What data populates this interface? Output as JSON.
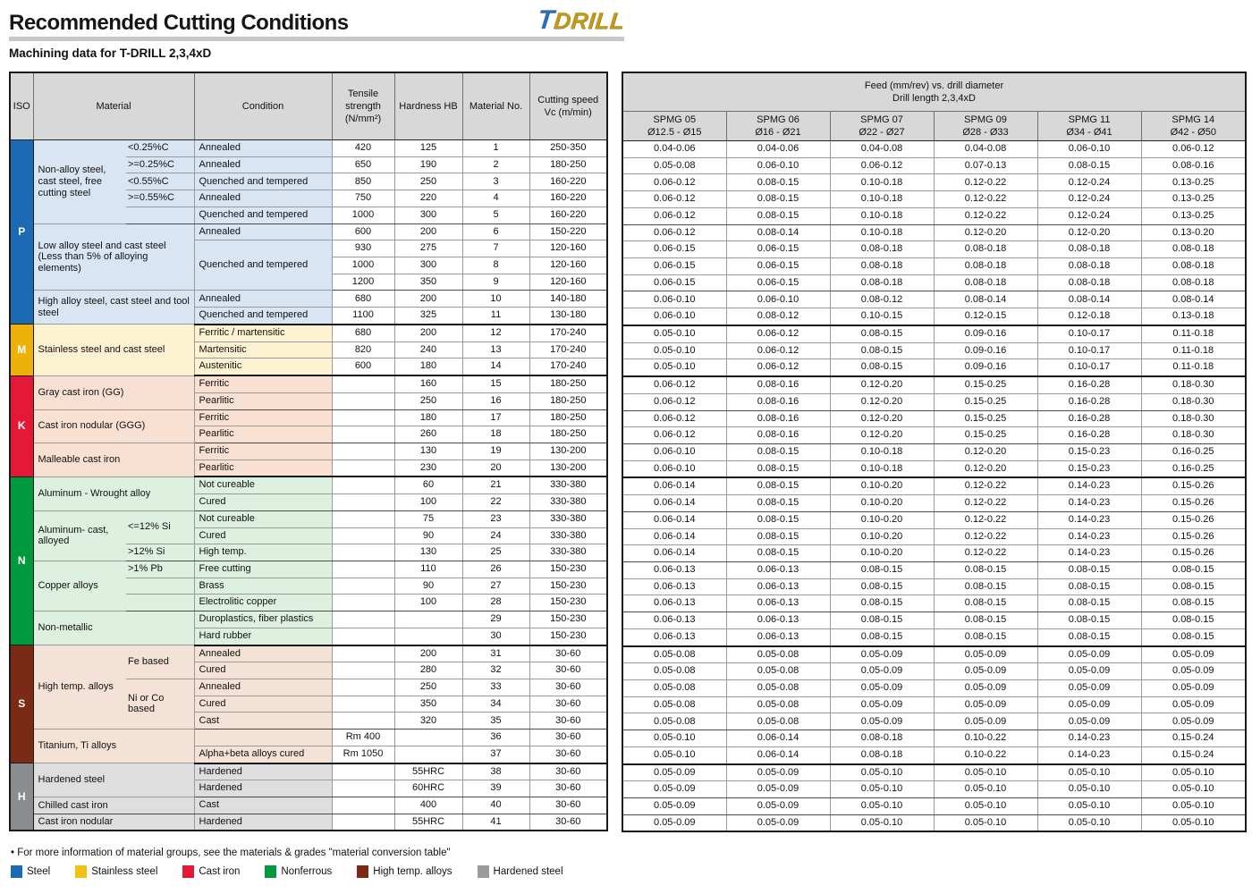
{
  "header": {
    "title": "Recommended Cutting Conditions",
    "subtitle": "Machining data for T-DRILL 2,3,4xD",
    "logo_t": "T",
    "logo_drill": "DRILL"
  },
  "iso_colors": {
    "P": {
      "badge": "#1b6ab3",
      "bg": "#d9e5f3"
    },
    "M": {
      "badge": "#eeb00a",
      "bg": "#fdf3d2"
    },
    "K": {
      "badge": "#e41937",
      "bg": "#f8e0d2"
    },
    "N": {
      "badge": "#00993f",
      "bg": "#def0e0"
    },
    "S": {
      "badge": "#7a2a15",
      "bg": "#f3e2d5"
    },
    "H": {
      "badge": "#8a8d8f",
      "bg": "#dedede"
    }
  },
  "left_table": {
    "headers": [
      "ISO",
      "Material",
      "Condition",
      "Tensile strength (N/mm²)",
      "Hardness HB",
      "Material No.",
      "Cutting speed Vc (m/min)"
    ],
    "rows": [
      {
        "iso": "P",
        "isoSpan": 11,
        "mat": "Non-alloy steel, cast steel, free cutting steel",
        "matSpan": 5,
        "qual": "<0.25%C",
        "cond": "Annealed",
        "ten": "420",
        "hb": "125",
        "no": "1",
        "vc": "250-350"
      },
      {
        "qual": ">=0.25%C",
        "cond": "Annealed",
        "ten": "650",
        "hb": "190",
        "no": "2",
        "vc": "180-250"
      },
      {
        "qual": "<0.55%C",
        "cond": "Quenched and tempered",
        "ten": "850",
        "hb": "250",
        "no": "3",
        "vc": "160-220"
      },
      {
        "qual": ">=0.55%C",
        "cond": "Annealed",
        "ten": "750",
        "hb": "220",
        "no": "4",
        "vc": "160-220"
      },
      {
        "qual": "",
        "cond": "Quenched and tempered",
        "ten": "1000",
        "hb": "300",
        "no": "5",
        "vc": "160-220"
      },
      {
        "mat": "Low alloy steel and cast steel (Less than 5% of alloying elements)",
        "matSpan": 4,
        "matCols": 2,
        "cond": "Annealed",
        "ten": "600",
        "hb": "200",
        "no": "6",
        "vc": "150-220"
      },
      {
        "cond": "Quenched and tempered",
        "condSpan": 3,
        "ten": "930",
        "hb": "275",
        "no": "7",
        "vc": "120-160"
      },
      {
        "ten": "1000",
        "hb": "300",
        "no": "8",
        "vc": "120-160"
      },
      {
        "ten": "1200",
        "hb": "350",
        "no": "9",
        "vc": "120-160"
      },
      {
        "mat": "High alloy steel, cast steel and tool steel",
        "matSpan": 2,
        "matCols": 2,
        "cond": "Annealed",
        "ten": "680",
        "hb": "200",
        "no": "10",
        "vc": "140-180"
      },
      {
        "cond": "Quenched and tempered",
        "ten": "1100",
        "hb": "325",
        "no": "11",
        "vc": "130-180"
      },
      {
        "iso": "M",
        "isoSpan": 3,
        "mat": "Stainless steel and cast steel",
        "matSpan": 3,
        "matCols": 2,
        "cond": "Ferritic / martensitic",
        "ten": "680",
        "hb": "200",
        "no": "12",
        "vc": "170-240"
      },
      {
        "cond": "Martensitic",
        "ten": "820",
        "hb": "240",
        "no": "13",
        "vc": "170-240"
      },
      {
        "cond": "Austenitic",
        "ten": "600",
        "hb": "180",
        "no": "14",
        "vc": "170-240"
      },
      {
        "iso": "K",
        "isoSpan": 6,
        "mat": "Gray cast iron (GG)",
        "matSpan": 2,
        "matCols": 2,
        "cond": "Ferritic",
        "ten": "",
        "hb": "160",
        "no": "15",
        "vc": "180-250"
      },
      {
        "cond": "Pearlitic",
        "ten": "",
        "hb": "250",
        "no": "16",
        "vc": "180-250"
      },
      {
        "mat": "Cast iron nodular (GGG)",
        "matSpan": 2,
        "matCols": 2,
        "cond": "Ferritic",
        "ten": "",
        "hb": "180",
        "no": "17",
        "vc": "180-250"
      },
      {
        "cond": "Pearlitic",
        "ten": "",
        "hb": "260",
        "no": "18",
        "vc": "180-250"
      },
      {
        "mat": "Malleable cast iron",
        "matSpan": 2,
        "matCols": 2,
        "cond": "Ferritic",
        "ten": "",
        "hb": "130",
        "no": "19",
        "vc": "130-200"
      },
      {
        "cond": "Pearlitic",
        "ten": "",
        "hb": "230",
        "no": "20",
        "vc": "130-200"
      },
      {
        "iso": "N",
        "isoSpan": 10,
        "mat": "Aluminum - Wrought alloy",
        "matSpan": 2,
        "matCols": 2,
        "cond": "Not cureable",
        "ten": "",
        "hb": "60",
        "no": "21",
        "vc": "330-380"
      },
      {
        "cond": "Cured",
        "ten": "",
        "hb": "100",
        "no": "22",
        "vc": "330-380"
      },
      {
        "mat": "Aluminum- cast, alloyed",
        "matSpan": 3,
        "qual": "<=12% Si",
        "qualSpan": 2,
        "cond": "Not cureable",
        "ten": "",
        "hb": "75",
        "no": "23",
        "vc": "330-380"
      },
      {
        "cond": "Cured",
        "ten": "",
        "hb": "90",
        "no": "24",
        "vc": "330-380"
      },
      {
        "qual": ">12% Si",
        "cond": "High temp.",
        "ten": "",
        "hb": "130",
        "no": "25",
        "vc": "330-380"
      },
      {
        "mat": "Copper alloys",
        "matSpan": 3,
        "qual": ">1% Pb",
        "cond": "Free cutting",
        "ten": "",
        "hb": "110",
        "no": "26",
        "vc": "150-230"
      },
      {
        "qual": "",
        "cond": "Brass",
        "ten": "",
        "hb": "90",
        "no": "27",
        "vc": "150-230"
      },
      {
        "qual": "",
        "cond": "Electrolitic copper",
        "ten": "",
        "hb": "100",
        "no": "28",
        "vc": "150-230"
      },
      {
        "mat": "Non-metallic",
        "matSpan": 2,
        "matCols": 2,
        "cond": "Duroplastics, fiber plastics",
        "ten": "",
        "hb": "",
        "no": "29",
        "vc": "150-230"
      },
      {
        "cond": "Hard rubber",
        "ten": "",
        "hb": "",
        "no": "30",
        "vc": "150-230"
      },
      {
        "iso": "S",
        "isoSpan": 7,
        "mat": "High temp. alloys",
        "matSpan": 5,
        "qual": "Fe based",
        "qualSpan": 2,
        "cond": "Annealed",
        "ten": "",
        "hb": "200",
        "no": "31",
        "vc": "30-60"
      },
      {
        "cond": "Cured",
        "ten": "",
        "hb": "280",
        "no": "32",
        "vc": "30-60"
      },
      {
        "qual": "Ni or Co based",
        "qualSpan": 3,
        "cond": "Annealed",
        "ten": "",
        "hb": "250",
        "no": "33",
        "vc": "30-60"
      },
      {
        "cond": "Cured",
        "ten": "",
        "hb": "350",
        "no": "34",
        "vc": "30-60"
      },
      {
        "cond": "Cast",
        "ten": "",
        "hb": "320",
        "no": "35",
        "vc": "30-60"
      },
      {
        "mat": "Titanium, Ti alloys",
        "matSpan": 2,
        "matCols": 2,
        "cond": "",
        "ten": "Rm 400",
        "hb": "",
        "no": "36",
        "vc": "30-60"
      },
      {
        "cond": "Alpha+beta alloys cured",
        "ten": "Rm 1050",
        "hb": "",
        "no": "37",
        "vc": "30-60"
      },
      {
        "iso": "H",
        "isoSpan": 4,
        "mat": "Hardened steel",
        "matSpan": 2,
        "matCols": 2,
        "cond": "Hardened",
        "ten": "",
        "hb": "55HRC",
        "no": "38",
        "vc": "30-60"
      },
      {
        "cond": "Hardened",
        "ten": "",
        "hb": "60HRC",
        "no": "39",
        "vc": "30-60"
      },
      {
        "mat": "Chilled cast iron",
        "matSpan": 1,
        "matCols": 2,
        "cond": "Cast",
        "ten": "",
        "hb": "400",
        "no": "40",
        "vc": "30-60"
      },
      {
        "mat": "Cast iron nodular",
        "matSpan": 1,
        "matCols": 2,
        "cond": "Hardened",
        "ten": "",
        "hb": "55HRC",
        "no": "41",
        "vc": "30-60"
      }
    ]
  },
  "right_table": {
    "group_header_line1": "Feed (mm/rev) vs. drill diameter",
    "group_header_line2": "Drill length 2,3,4xD",
    "columns": [
      {
        "name": "SPMG 05",
        "range": "Ø12.5 - Ø15"
      },
      {
        "name": "SPMG 06",
        "range": "Ø16 - Ø21"
      },
      {
        "name": "SPMG 07",
        "range": "Ø22 - Ø27"
      },
      {
        "name": "SPMG 09",
        "range": "Ø28 - Ø33"
      },
      {
        "name": "SPMG 11",
        "range": "Ø34 - Ø41"
      },
      {
        "name": "SPMG 14",
        "range": "Ø42 - Ø50"
      }
    ],
    "rows": [
      [
        "0.04-0.06",
        "0.04-0.06",
        "0.04-0.08",
        "0.04-0.08",
        "0.06-0.10",
        "0.06-0.12"
      ],
      [
        "0.05-0.08",
        "0.06-0.10",
        "0.06-0.12",
        "0.07-0.13",
        "0.08-0.15",
        "0.08-0.16"
      ],
      [
        "0.06-0.12",
        "0.08-0.15",
        "0.10-0.18",
        "0.12-0.22",
        "0.12-0.24",
        "0.13-0.25"
      ],
      [
        "0.06-0.12",
        "0.08-0.15",
        "0.10-0.18",
        "0.12-0.22",
        "0.12-0.24",
        "0.13-0.25"
      ],
      [
        "0.06-0.12",
        "0.08-0.15",
        "0.10-0.18",
        "0.12-0.22",
        "0.12-0.24",
        "0.13-0.25"
      ],
      [
        "0.06-0.12",
        "0.08-0.14",
        "0.10-0.18",
        "0.12-0.20",
        "0.12-0.20",
        "0.13-0.20"
      ],
      [
        "0.06-0.15",
        "0.06-0.15",
        "0.08-0.18",
        "0.08-0.18",
        "0.08-0.18",
        "0.08-0.18"
      ],
      [
        "0.06-0.15",
        "0.06-0.15",
        "0.08-0.18",
        "0.08-0.18",
        "0.08-0.18",
        "0.08-0.18"
      ],
      [
        "0.06-0.15",
        "0.06-0.15",
        "0.08-0.18",
        "0.08-0.18",
        "0.08-0.18",
        "0.08-0.18"
      ],
      [
        "0.06-0.10",
        "0.06-0.10",
        "0.08-0.12",
        "0.08-0.14",
        "0.08-0.14",
        "0.08-0.14"
      ],
      [
        "0.06-0.10",
        "0.08-0.12",
        "0.10-0.15",
        "0.12-0.15",
        "0.12-0.18",
        "0.13-0.18"
      ],
      [
        "0.05-0.10",
        "0.06-0.12",
        "0.08-0.15",
        "0.09-0.16",
        "0.10-0.17",
        "0.11-0.18"
      ],
      [
        "0.05-0.10",
        "0.06-0.12",
        "0.08-0.15",
        "0.09-0.16",
        "0.10-0.17",
        "0.11-0.18"
      ],
      [
        "0.05-0.10",
        "0.06-0.12",
        "0.08-0.15",
        "0.09-0.16",
        "0.10-0.17",
        "0.11-0.18"
      ],
      [
        "0.06-0.12",
        "0.08-0.16",
        "0.12-0.20",
        "0.15-0.25",
        "0.16-0.28",
        "0.18-0.30"
      ],
      [
        "0.06-0.12",
        "0.08-0.16",
        "0.12-0.20",
        "0.15-0.25",
        "0.16-0.28",
        "0.18-0.30"
      ],
      [
        "0.06-0.12",
        "0.08-0.16",
        "0.12-0.20",
        "0.15-0.25",
        "0.16-0.28",
        "0.18-0.30"
      ],
      [
        "0.06-0.12",
        "0.08-0.16",
        "0.12-0.20",
        "0.15-0.25",
        "0.16-0.28",
        "0.18-0.30"
      ],
      [
        "0.06-0.10",
        "0.08-0.15",
        "0.10-0.18",
        "0.12-0.20",
        "0.15-0.23",
        "0.16-0.25"
      ],
      [
        "0.06-0.10",
        "0.08-0.15",
        "0.10-0.18",
        "0.12-0.20",
        "0.15-0.23",
        "0.16-0.25"
      ],
      [
        "0.06-0.14",
        "0.08-0.15",
        "0.10-0.20",
        "0.12-0.22",
        "0.14-0.23",
        "0.15-0.26"
      ],
      [
        "0.06-0.14",
        "0.08-0.15",
        "0.10-0.20",
        "0.12-0.22",
        "0.14-0.23",
        "0.15-0.26"
      ],
      [
        "0.06-0.14",
        "0.08-0.15",
        "0.10-0.20",
        "0.12-0.22",
        "0.14-0.23",
        "0.15-0.26"
      ],
      [
        "0.06-0.14",
        "0.08-0.15",
        "0.10-0.20",
        "0.12-0.22",
        "0.14-0.23",
        "0.15-0.26"
      ],
      [
        "0.06-0.14",
        "0.08-0.15",
        "0.10-0.20",
        "0.12-0.22",
        "0.14-0.23",
        "0.15-0.26"
      ],
      [
        "0.06-0.13",
        "0.06-0.13",
        "0.08-0.15",
        "0.08-0.15",
        "0.08-0.15",
        "0.08-0.15"
      ],
      [
        "0.06-0.13",
        "0.06-0.13",
        "0.08-0.15",
        "0.08-0.15",
        "0.08-0.15",
        "0.08-0.15"
      ],
      [
        "0.06-0.13",
        "0.06-0.13",
        "0.08-0.15",
        "0.08-0.15",
        "0.08-0.15",
        "0.08-0.15"
      ],
      [
        "0.06-0.13",
        "0.06-0.13",
        "0.08-0.15",
        "0.08-0.15",
        "0.08-0.15",
        "0.08-0.15"
      ],
      [
        "0.06-0.13",
        "0.06-0.13",
        "0.08-0.15",
        "0.08-0.15",
        "0.08-0.15",
        "0.08-0.15"
      ],
      [
        "0.05-0.08",
        "0.05-0.08",
        "0.05-0.09",
        "0.05-0.09",
        "0.05-0.09",
        "0.05-0.09"
      ],
      [
        "0.05-0.08",
        "0.05-0.08",
        "0.05-0.09",
        "0.05-0.09",
        "0.05-0.09",
        "0.05-0.09"
      ],
      [
        "0.05-0.08",
        "0.05-0.08",
        "0.05-0.09",
        "0.05-0.09",
        "0.05-0.09",
        "0.05-0.09"
      ],
      [
        "0.05-0.08",
        "0.05-0.08",
        "0.05-0.09",
        "0.05-0.09",
        "0.05-0.09",
        "0.05-0.09"
      ],
      [
        "0.05-0.08",
        "0.05-0.08",
        "0.05-0.09",
        "0.05-0.09",
        "0.05-0.09",
        "0.05-0.09"
      ],
      [
        "0.05-0.10",
        "0.06-0.14",
        "0.08-0.18",
        "0.10-0.22",
        "0.14-0.23",
        "0.15-0.24"
      ],
      [
        "0.05-0.10",
        "0.06-0.14",
        "0.08-0.18",
        "0.10-0.22",
        "0.14-0.23",
        "0.15-0.24"
      ],
      [
        "0.05-0.09",
        "0.05-0.09",
        "0.05-0.10",
        "0.05-0.10",
        "0.05-0.10",
        "0.05-0.10"
      ],
      [
        "0.05-0.09",
        "0.05-0.09",
        "0.05-0.10",
        "0.05-0.10",
        "0.05-0.10",
        "0.05-0.10"
      ],
      [
        "0.05-0.09",
        "0.05-0.09",
        "0.05-0.10",
        "0.05-0.10",
        "0.05-0.10",
        "0.05-0.10"
      ],
      [
        "0.05-0.09",
        "0.05-0.09",
        "0.05-0.10",
        "0.05-0.10",
        "0.05-0.10",
        "0.05-0.10"
      ]
    ]
  },
  "footer": {
    "note": "• For more information of material groups, see the materials & grades \"material conversion table\"",
    "legend": [
      {
        "label": "Steel",
        "color": "#1b6ab3"
      },
      {
        "label": "Stainless steel",
        "color": "#f2c116"
      },
      {
        "label": "Cast iron",
        "color": "#e41937"
      },
      {
        "label": "Nonferrous",
        "color": "#00993f"
      },
      {
        "label": "High temp. alloys",
        "color": "#7a2a15"
      },
      {
        "label": "Hardened steel",
        "color": "#9b9b9b"
      }
    ]
  }
}
